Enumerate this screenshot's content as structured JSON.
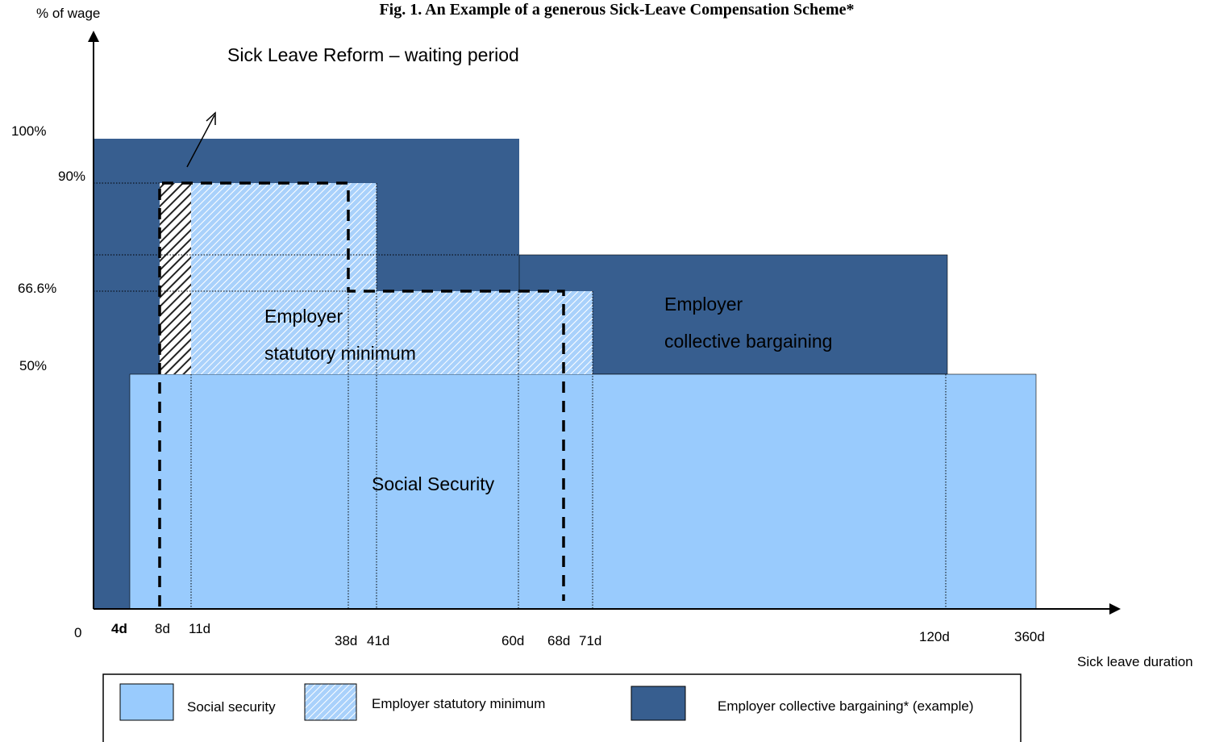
{
  "title": "Fig. 1. An Example of a generous Sick-Leave Compensation Scheme*",
  "y_axis_label": "% of wage",
  "x_axis_label": "Sick leave duration",
  "annotation": "Sick Leave Reform – waiting period",
  "y_labels": [
    "100%",
    "90%",
    "66.6%",
    "50%"
  ],
  "x_labels": [
    "0",
    "4d",
    "8d",
    "11d",
    "38d",
    "41d",
    "60d",
    "68d",
    "71d",
    "120d",
    "360d"
  ],
  "regions": {
    "statutory": [
      "Employer",
      "statutory minimum"
    ],
    "collective": [
      "Employer",
      "collective bargaining"
    ],
    "social": "Social Security"
  },
  "legend": [
    "Social security",
    "Employer statutory minimum",
    "Employer collective bargaining* (example)"
  ]
}
